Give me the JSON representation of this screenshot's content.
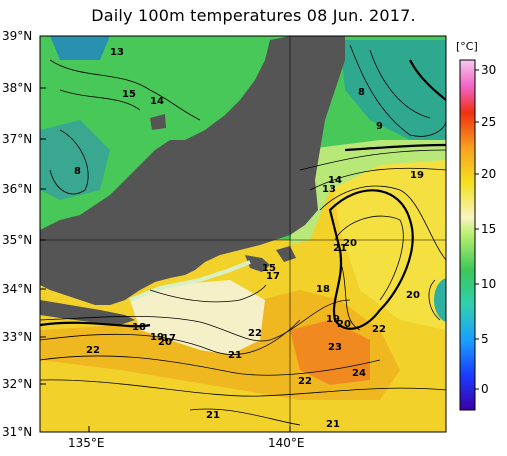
{
  "title": "Daily 100m temperatures 08 Jun. 2017.",
  "axes": {
    "lat_labels": [
      "39°N",
      "38°N",
      "37°N",
      "36°N",
      "35°N",
      "34°N",
      "33°N",
      "32°N",
      "31°N"
    ],
    "lon_labels": [
      "135°E",
      "140°E"
    ]
  },
  "colorbar": {
    "unit": "[°C]",
    "ticks": [
      "30",
      "25",
      "20",
      "15",
      "10",
      "5",
      "0"
    ]
  },
  "contour_labels": [
    "13",
    "15",
    "14",
    "8",
    "8",
    "9",
    "14",
    "13",
    "19",
    "21",
    "20",
    "15",
    "17",
    "18",
    "20",
    "18",
    "19",
    "20",
    "17",
    "20",
    "19",
    "22",
    "22",
    "21",
    "23",
    "24",
    "22",
    "22",
    "21",
    "21"
  ]
}
